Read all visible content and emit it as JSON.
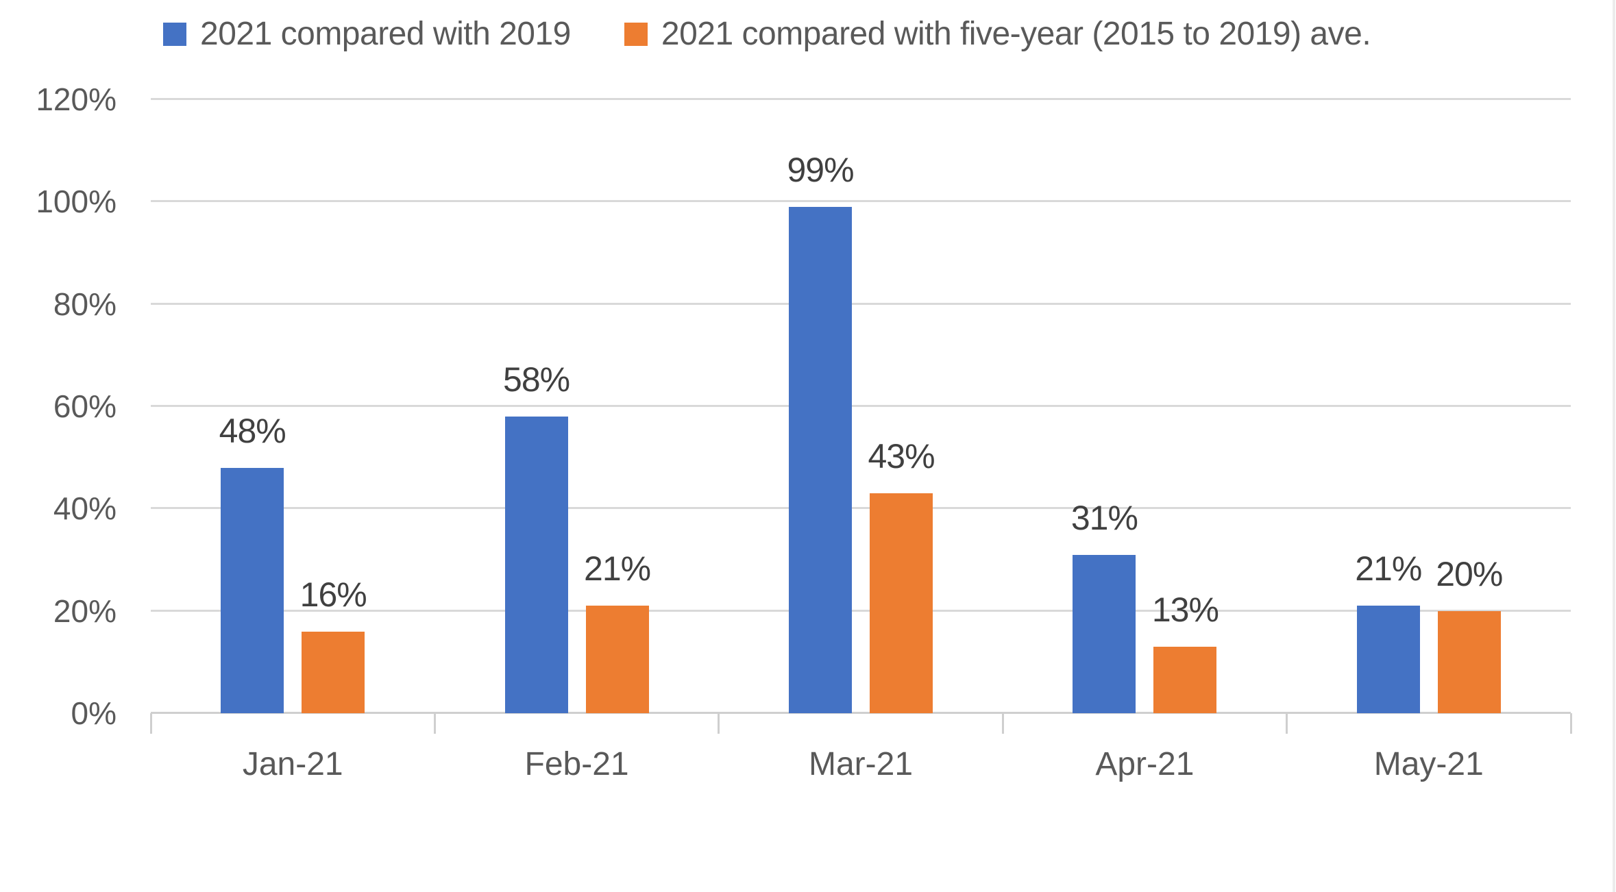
{
  "chart_data": {
    "type": "bar",
    "categories": [
      "Jan-21",
      "Feb-21",
      "Mar-21",
      "Apr-21",
      "May-21"
    ],
    "series": [
      {
        "name": "2021 compared with 2019",
        "color": "#4472C4",
        "values": [
          48,
          58,
          99,
          31,
          21
        ],
        "data_labels": [
          "48%",
          "58%",
          "99%",
          "31%",
          "21%"
        ]
      },
      {
        "name": "2021 compared with five-year (2015 to 2019) ave.",
        "color": "#ED7D31",
        "values": [
          16,
          21,
          43,
          13,
          20
        ],
        "data_labels": [
          "16%",
          "21%",
          "43%",
          "13%",
          "20%"
        ]
      }
    ],
    "title": "",
    "xlabel": "",
    "ylabel": "",
    "ylim": [
      0,
      120
    ],
    "y_ticks": [
      "0%",
      "20%",
      "40%",
      "60%",
      "80%",
      "100%",
      "120%"
    ],
    "y_tick_values": [
      0,
      20,
      40,
      60,
      80,
      100,
      120
    ],
    "grid": true,
    "legend_position": "top"
  },
  "colors": {
    "series_blue": "#4472C4",
    "series_orange": "#ED7D31",
    "gridline": "#d9d9d9",
    "axis_line": "#cfcfcf",
    "data_label_text": "#404040",
    "axis_label_text": "#595959"
  }
}
